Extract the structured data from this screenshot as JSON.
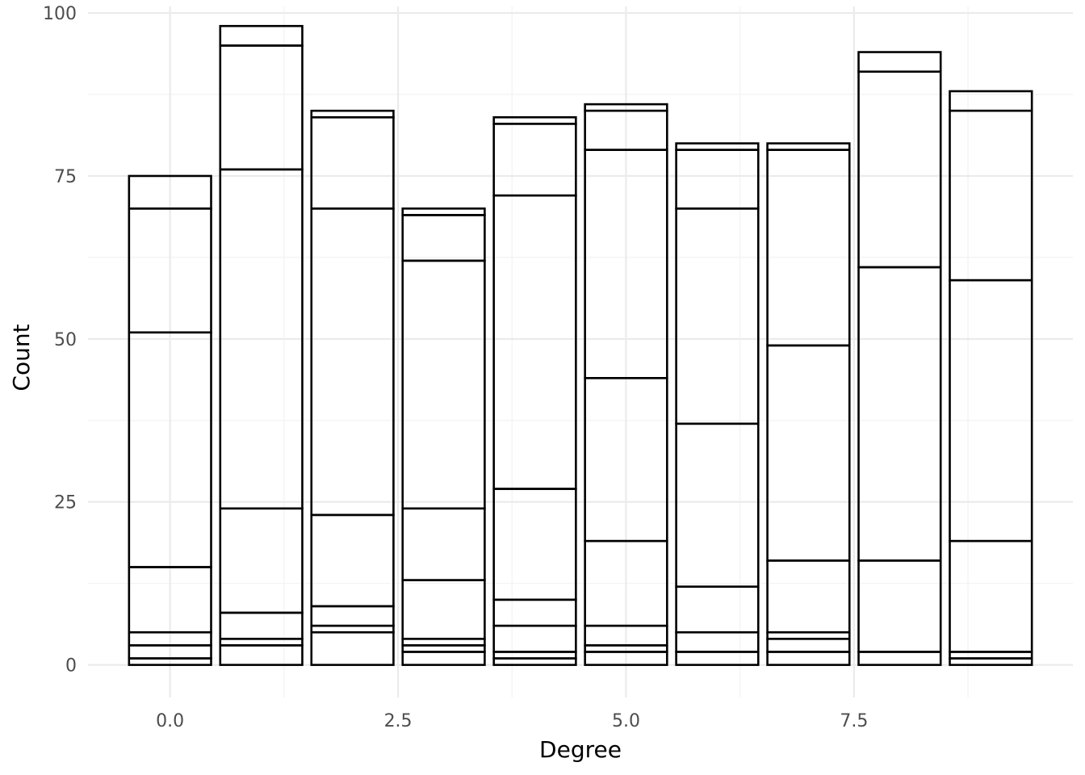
{
  "chart_data": {
    "type": "bar",
    "stacked": true,
    "xlabel": "Degree",
    "ylabel": "Count",
    "xlim": [
      -0.9,
      9.9
    ],
    "ylim": [
      -5,
      101
    ],
    "x_ticks": [
      0,
      2.5,
      5,
      7.5
    ],
    "x_tick_labels": [
      "0.0",
      "2.5",
      "5.0",
      "7.5"
    ],
    "y_ticks": [
      0,
      25,
      50,
      75,
      100
    ],
    "y_tick_labels": [
      "0",
      "25",
      "50",
      "75",
      "100"
    ],
    "grid": true,
    "bar_width": 0.9,
    "bars": [
      {
        "x": 0,
        "boundaries": [
          0,
          1,
          3,
          5,
          15,
          51,
          70,
          75
        ]
      },
      {
        "x": 1,
        "boundaries": [
          0,
          3,
          4,
          8,
          24,
          76,
          95,
          98
        ]
      },
      {
        "x": 2,
        "boundaries": [
          0,
          5,
          6,
          9,
          23,
          70,
          84,
          85
        ]
      },
      {
        "x": 3,
        "boundaries": [
          0,
          2,
          3,
          4,
          13,
          24,
          62,
          69,
          70
        ]
      },
      {
        "x": 4,
        "boundaries": [
          0,
          1,
          2,
          6,
          10,
          27,
          72,
          83,
          84
        ]
      },
      {
        "x": 5,
        "boundaries": [
          0,
          2,
          3,
          6,
          19,
          44,
          79,
          85,
          86
        ]
      },
      {
        "x": 6,
        "boundaries": [
          0,
          2,
          5,
          12,
          37,
          70,
          79,
          80
        ]
      },
      {
        "x": 7,
        "boundaries": [
          0,
          2,
          4,
          5,
          16,
          49,
          79,
          80
        ]
      },
      {
        "x": 8,
        "boundaries": [
          0,
          2,
          16,
          61,
          91,
          94
        ]
      },
      {
        "x": 9,
        "boundaries": [
          0,
          1,
          2,
          19,
          59,
          85,
          88
        ]
      }
    ],
    "totals": [
      75,
      98,
      85,
      70,
      84,
      86,
      80,
      80,
      94,
      88
    ]
  }
}
